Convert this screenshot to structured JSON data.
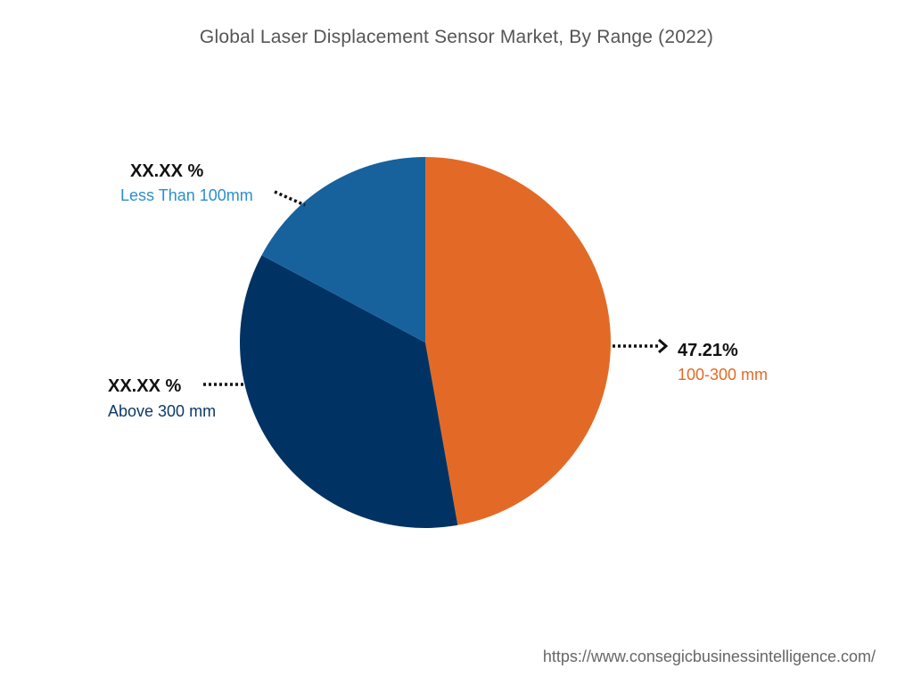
{
  "chart_data": {
    "type": "pie",
    "title": "Global Laser Displacement Sensor Market, By Range (2022)",
    "slices": [
      {
        "name": "100-300 mm",
        "label": "47.21%",
        "value": 47.21,
        "color": "#E36A26"
      },
      {
        "name": "Above 300 mm",
        "label": "XX.XX %",
        "value": 35.6,
        "color": "#003363"
      },
      {
        "name": "Less Than 100mm",
        "label": "XX.XX %",
        "value": 17.2,
        "color": "#17629C"
      }
    ],
    "label_colors": {
      "100-300 mm": "#E36A26",
      "Above 300 mm": "#0E3A66",
      "Less Than 100mm": "#2B8FD0"
    }
  },
  "footer": {
    "url": "https://www.consegicbusinessintelligence.com/"
  }
}
